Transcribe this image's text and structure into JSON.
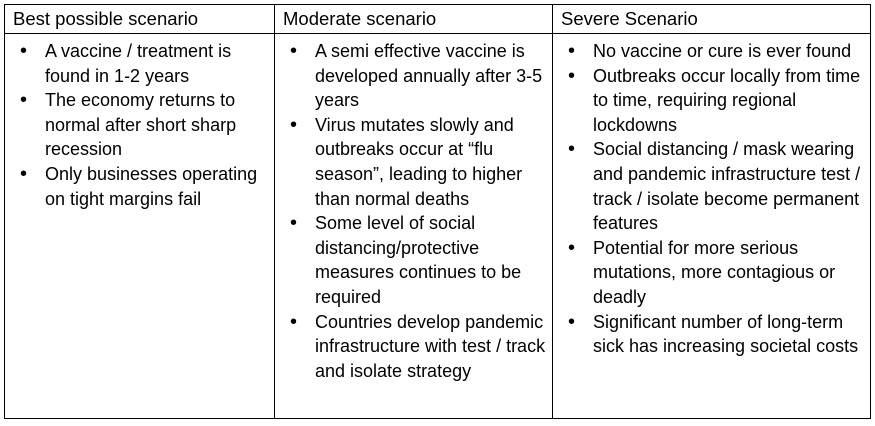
{
  "colors": {
    "background": "#ffffff",
    "border": "#000000",
    "text": "#000000"
  },
  "table": {
    "columns": [
      {
        "header": "Best possible scenario",
        "items": [
          "A vaccine / treatment is found in 1-2 years",
          "The economy returns to normal after short sharp recession",
          "Only businesses operating on tight margins fail"
        ]
      },
      {
        "header": "Moderate scenario",
        "items": [
          "A semi effective vaccine is developed annually after 3-5 years",
          "Virus mutates slowly and outbreaks occur at “flu season”, leading to higher than normal deaths",
          "Some level of social distancing/protective measures continues to be required",
          "Countries develop pandemic infrastructure with test / track and isolate strategy"
        ]
      },
      {
        "header": "Severe Scenario",
        "items": [
          "No vaccine or cure is ever found",
          "Outbreaks occur locally from time to time, requiring regional lockdowns",
          "Social distancing / mask wearing and pandemic infrastructure test / track / isolate become permanent features",
          "Potential for more serious mutations, more contagious or deadly",
          "Significant number of long-term sick has increasing societal costs"
        ]
      }
    ]
  }
}
